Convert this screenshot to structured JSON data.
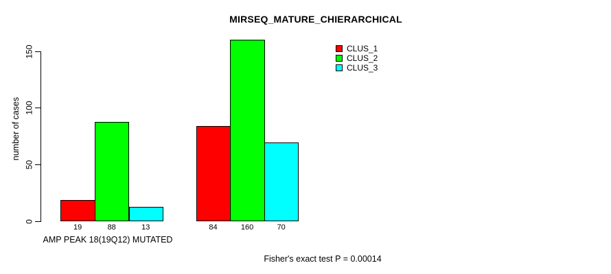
{
  "colors": {
    "background": "#ffffff",
    "text": "#000000",
    "axis": "#000000"
  },
  "chart_data": {
    "type": "bar",
    "title": "MIRSEQ_MATURE_CHIERARCHICAL",
    "ylabel": "number of cases",
    "xlabel": "",
    "x_category_label": "AMP PEAK 18(19Q12) MUTATED",
    "footer": "Fisher's exact test P = 0.00014",
    "ylim": [
      0,
      150
    ],
    "yticks": [
      0,
      50,
      100,
      150
    ],
    "grid": false,
    "legend_position": "top-right",
    "categories": [
      "AMP PEAK 18(19Q12) MUTATED",
      ""
    ],
    "series": [
      {
        "name": "CLUS_1",
        "color": "#ff0000",
        "values": [
          19,
          84
        ]
      },
      {
        "name": "CLUS_2",
        "color": "#00ff00",
        "values": [
          88,
          160
        ]
      },
      {
        "name": "CLUS_3",
        "color": "#00ffff",
        "values": [
          13,
          70
        ]
      }
    ],
    "show_value_labels": true
  }
}
